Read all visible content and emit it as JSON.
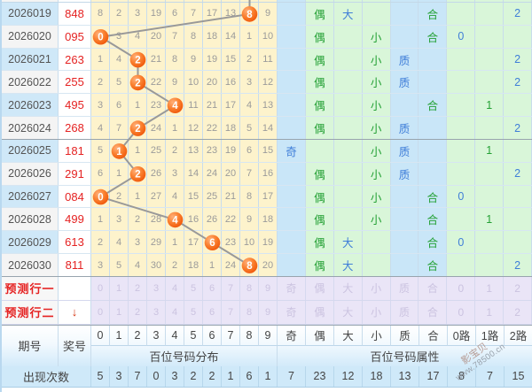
{
  "chart_data": {
    "type": "table",
    "period_header": "期号",
    "prize_header": "奖号",
    "digit_headers": [
      "0",
      "1",
      "2",
      "3",
      "4",
      "5",
      "6",
      "7",
      "8",
      "9"
    ],
    "attr_headers": [
      "奇",
      "偶",
      "大",
      "小",
      "质",
      "合",
      "0路",
      "1路",
      "2路"
    ],
    "grid_group_label": "百位号码分布",
    "attr_group_label": "百位号码属性",
    "rows": [
      {
        "period": "2026019",
        "prize": "848",
        "ball_col": 8,
        "misses": [
          "8",
          "2",
          "3",
          "19",
          "6",
          "7",
          "17",
          "13",
          "",
          "9"
        ],
        "attrs": [
          "",
          "偶",
          "大",
          "",
          "",
          "合",
          "",
          "",
          "2"
        ]
      },
      {
        "period": "2026020",
        "prize": "095",
        "ball_col": 0,
        "misses": [
          "",
          "3",
          "4",
          "20",
          "7",
          "8",
          "18",
          "14",
          "1",
          "10"
        ],
        "attrs": [
          "",
          "偶",
          "",
          "小",
          "",
          "合",
          "0",
          "",
          ""
        ]
      },
      {
        "period": "2026021",
        "prize": "263",
        "ball_col": 2,
        "misses": [
          "1",
          "4",
          "",
          "21",
          "8",
          "9",
          "19",
          "15",
          "2",
          "11"
        ],
        "attrs": [
          "",
          "偶",
          "",
          "小",
          "质",
          "",
          "",
          "",
          "2"
        ]
      },
      {
        "period": "2026022",
        "prize": "255",
        "ball_col": 2,
        "misses": [
          "2",
          "5",
          "",
          "22",
          "9",
          "10",
          "20",
          "16",
          "3",
          "12"
        ],
        "attrs": [
          "",
          "偶",
          "",
          "小",
          "质",
          "",
          "",
          "",
          "2"
        ]
      },
      {
        "period": "2026023",
        "prize": "495",
        "ball_col": 4,
        "misses": [
          "3",
          "6",
          "1",
          "23",
          "",
          "11",
          "21",
          "17",
          "4",
          "13"
        ],
        "attrs": [
          "",
          "偶",
          "",
          "小",
          "",
          "合",
          "",
          "1",
          ""
        ]
      },
      {
        "period": "2026024",
        "prize": "268",
        "ball_col": 2,
        "misses": [
          "4",
          "7",
          "",
          "24",
          "1",
          "12",
          "22",
          "18",
          "5",
          "14"
        ],
        "attrs": [
          "",
          "偶",
          "",
          "小",
          "质",
          "",
          "",
          "",
          "2"
        ]
      },
      {
        "period": "2026025",
        "prize": "181",
        "ball_col": 1,
        "misses": [
          "5",
          "",
          "1",
          "25",
          "2",
          "13",
          "23",
          "19",
          "6",
          "15"
        ],
        "attrs": [
          "奇",
          "",
          "",
          "小",
          "质",
          "",
          "",
          "1",
          ""
        ]
      },
      {
        "period": "2026026",
        "prize": "291",
        "ball_col": 2,
        "misses": [
          "6",
          "1",
          "",
          "26",
          "3",
          "14",
          "24",
          "20",
          "7",
          "16"
        ],
        "attrs": [
          "",
          "偶",
          "",
          "小",
          "质",
          "",
          "",
          "",
          "2"
        ]
      },
      {
        "period": "2026027",
        "prize": "084",
        "ball_col": 0,
        "misses": [
          "",
          "2",
          "1",
          "27",
          "4",
          "15",
          "25",
          "21",
          "8",
          "17"
        ],
        "attrs": [
          "",
          "偶",
          "",
          "小",
          "",
          "合",
          "0",
          "",
          ""
        ]
      },
      {
        "period": "2026028",
        "prize": "499",
        "ball_col": 4,
        "misses": [
          "1",
          "3",
          "2",
          "28",
          "",
          "16",
          "26",
          "22",
          "9",
          "18"
        ],
        "attrs": [
          "",
          "偶",
          "",
          "小",
          "",
          "合",
          "",
          "1",
          ""
        ]
      },
      {
        "period": "2026029",
        "prize": "613",
        "ball_col": 6,
        "misses": [
          "2",
          "4",
          "3",
          "29",
          "1",
          "17",
          "",
          "23",
          "10",
          "19"
        ],
        "attrs": [
          "",
          "偶",
          "大",
          "",
          "",
          "合",
          "0",
          "",
          ""
        ]
      },
      {
        "period": "2026030",
        "prize": "811",
        "ball_col": 8,
        "misses": [
          "3",
          "5",
          "4",
          "30",
          "2",
          "18",
          "1",
          "24",
          "",
          "20"
        ],
        "attrs": [
          "",
          "偶",
          "大",
          "",
          "",
          "合",
          "",
          "",
          "2"
        ]
      }
    ],
    "prediction_rows": [
      {
        "label": "预测行一",
        "arrow": "",
        "digits": [
          "0",
          "1",
          "2",
          "3",
          "4",
          "5",
          "6",
          "7",
          "8",
          "9"
        ],
        "attrs": [
          "奇",
          "偶",
          "大",
          "小",
          "质",
          "合",
          "0",
          "1",
          "2"
        ]
      },
      {
        "label": "预测行二",
        "arrow": "↓",
        "digits": [
          "0",
          "1",
          "2",
          "3",
          "4",
          "5",
          "6",
          "7",
          "8",
          "9"
        ],
        "attrs": [
          "奇",
          "偶",
          "大",
          "小",
          "质",
          "合",
          "0",
          "1",
          "2"
        ]
      }
    ],
    "counts_label": "出现次数",
    "digit_counts": [
      5,
      3,
      7,
      0,
      3,
      2,
      2,
      1,
      6,
      1
    ],
    "attr_counts": [
      7,
      23,
      12,
      18,
      13,
      17,
      8,
      7,
      15
    ]
  },
  "watermark": {
    "line1": "影宝贝",
    "line2": "www.78500.cn"
  },
  "colors": {
    "ball": "#ee5206",
    "trend_line": "#999999",
    "grid_bg": "#fdf3cc",
    "attr_blue_bg": "#c9e6f8",
    "attr_green_bg": "#d9f6d9",
    "blue_text": "#3f7ed8",
    "green_text": "#23a034",
    "prize_red": "#e52222",
    "period_alt_bg": "#cfe8f8",
    "prediction_bg": "#eae5f7",
    "counts_bg": "#cfe9f9"
  }
}
